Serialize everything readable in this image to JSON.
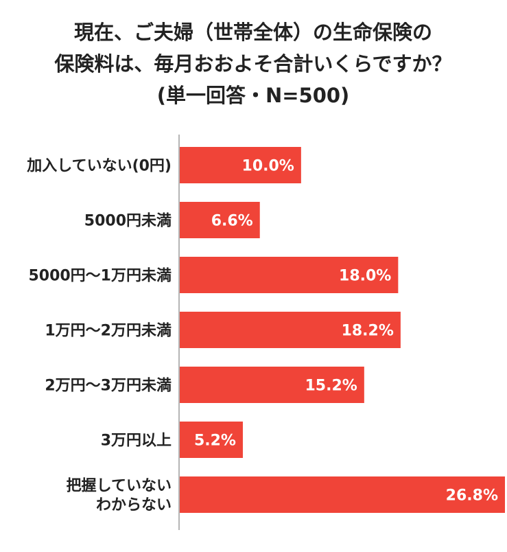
{
  "chart_data": {
    "type": "bar",
    "orientation": "horizontal",
    "title_lines": [
      "現在、ご夫婦（世帯全体）の生命保険の",
      "保険料は、毎月おおよそ合計いくらですか？",
      "(単一回答・N=500)"
    ],
    "categories": [
      [
        "加入していない(0円)"
      ],
      [
        "5000円未満"
      ],
      [
        "5000円〜1万円未満"
      ],
      [
        "1万円〜2万円未満"
      ],
      [
        "2万円〜3万円未満"
      ],
      [
        "3万円以上"
      ],
      [
        "把握していない",
        "わからない"
      ]
    ],
    "values": [
      10.0,
      6.6,
      18.0,
      18.2,
      15.2,
      5.2,
      26.8
    ],
    "value_labels": [
      "10.0%",
      "6.6%",
      "18.0%",
      "18.2%",
      "15.2%",
      "5.2%",
      "26.8%"
    ],
    "unit": "%",
    "xlim": [
      0,
      26.8
    ],
    "grid": false,
    "legend": "none",
    "colors": {
      "bar": "#f04438",
      "axis": "#b5b5b5",
      "text": "#222222",
      "value_text": "#ffffff"
    }
  }
}
